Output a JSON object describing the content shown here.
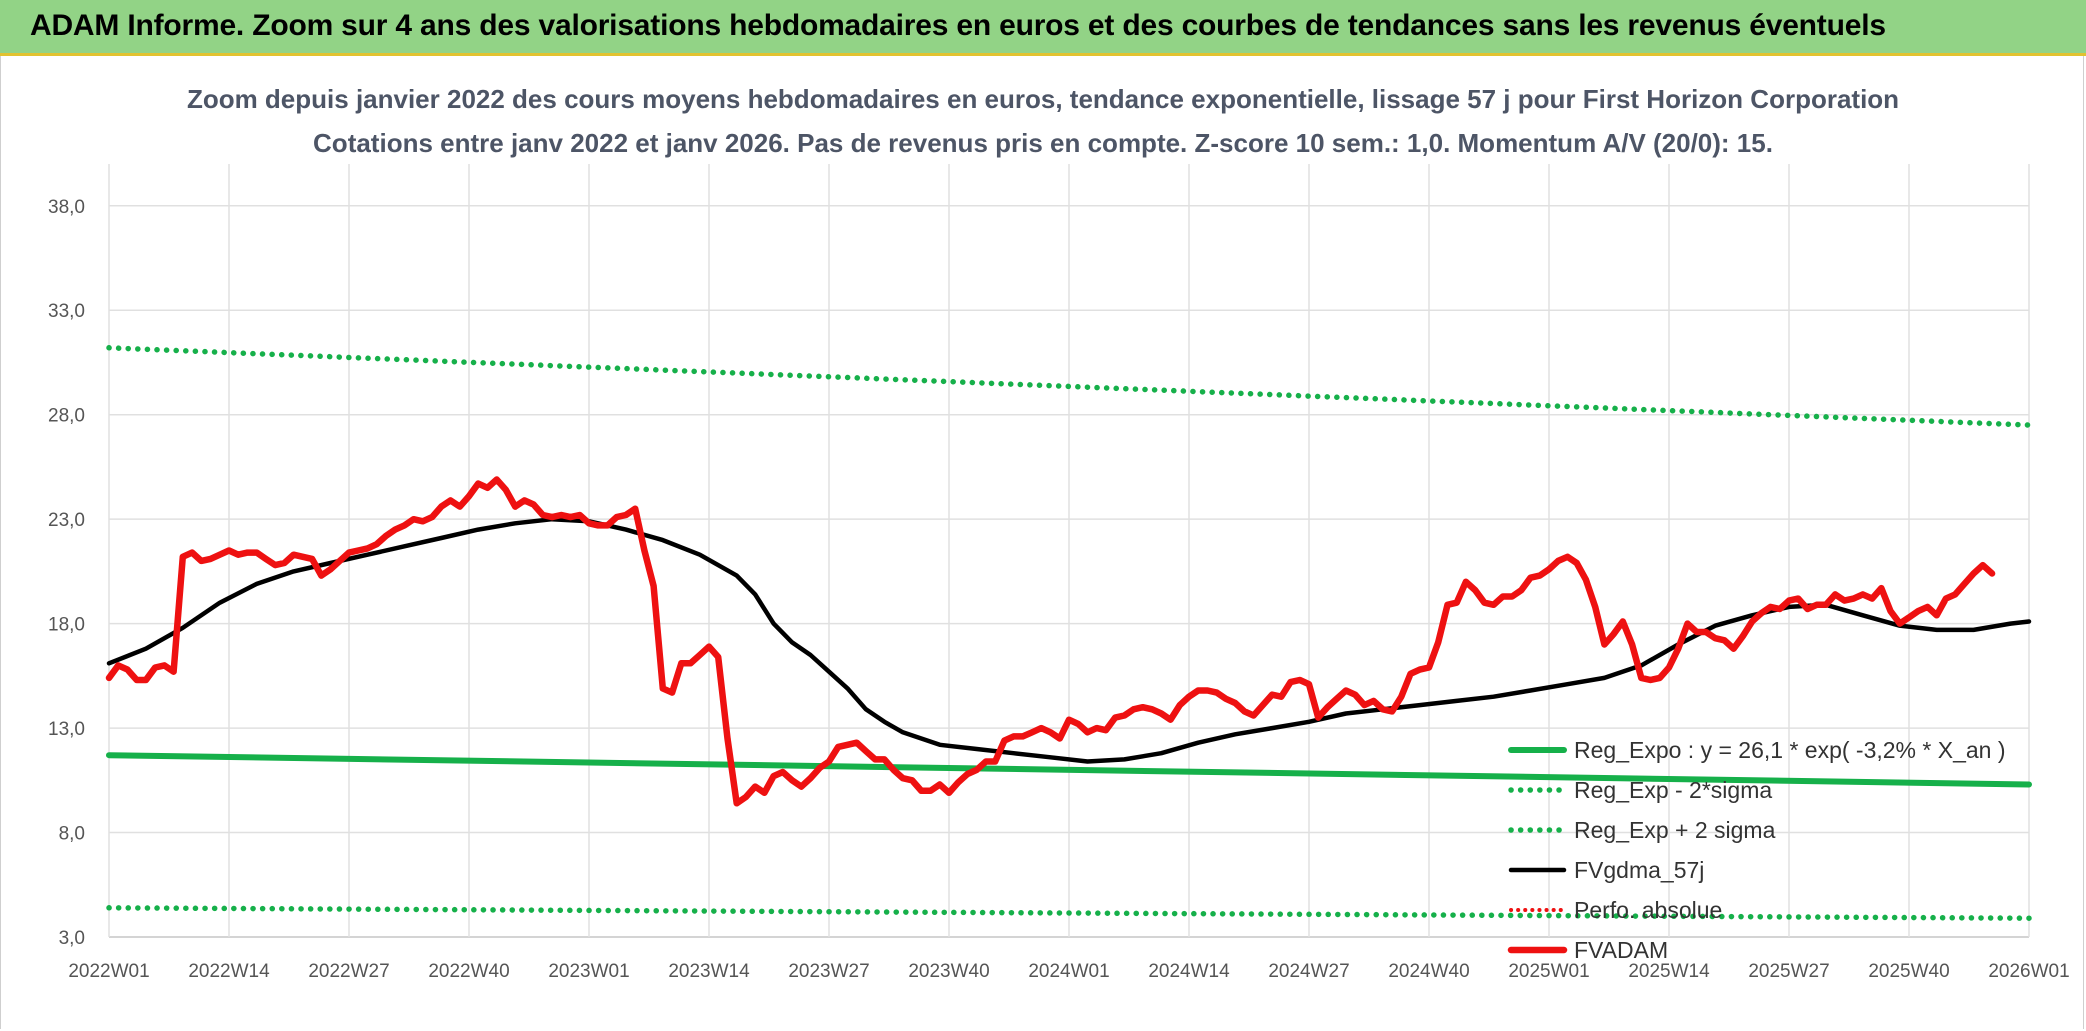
{
  "banner": {
    "text": "ADAM Informe. Zoom sur 4 ans des valorisations hebdomadaires en euros et des courbes de tendances sans les revenus éventuels"
  },
  "colors": {
    "banner_bg": "#92d386",
    "trend_green": "#16b04a",
    "black": "#000000",
    "red": "#ee1111",
    "grid": "#e0e0e0"
  },
  "chart_data": {
    "type": "line",
    "title": [
      "Zoom depuis janvier 2022 des cours moyens hebdomadaires en euros, tendance exponentielle, lissage 57 j pour First Horizon Corporation",
      "Cotations entre janv 2022 et janv 2026. Pas de revenus pris en compte. Z-score 10 sem.: 1,0. Momentum A/V (20/0): 15."
    ],
    "ylim": [
      3,
      40
    ],
    "yticks": [
      "3,0",
      "8,0",
      "13,0",
      "18,0",
      "23,0",
      "28,0",
      "33,0",
      "38,0"
    ],
    "ytick_values": [
      3,
      8,
      13,
      18,
      23,
      28,
      33,
      38
    ],
    "xticks": [
      "2022W01",
      "2022W14",
      "2022W27",
      "2022W40",
      "2023W01",
      "2023W14",
      "2023W27",
      "2023W40",
      "2024W01",
      "2024W14",
      "2024W27",
      "2024W40",
      "2025W01",
      "2025W14",
      "2025W27",
      "2025W40",
      "2026W01"
    ],
    "week_count": 209,
    "legend": [
      "Reg_Expo : y = 26,1 * exp( -3,2% *  X_an )",
      "Reg_Exp - 2*sigma",
      "Reg_Exp + 2 sigma",
      "FVgdma_57j",
      "Perfo. absolue",
      "FVADAM"
    ],
    "series": [
      {
        "name": "Reg_Expo : y = 26,1 * exp( -3,2% *  X_an )",
        "style": "solid-green",
        "points": [
          [
            0,
            11.7
          ],
          [
            208,
            10.3
          ]
        ]
      },
      {
        "name": "Reg_Exp - 2*sigma",
        "style": "dotted-green",
        "points": [
          [
            0,
            4.4
          ],
          [
            208,
            3.9
          ]
        ]
      },
      {
        "name": "Reg_Exp + 2 sigma",
        "style": "dotted-green",
        "points": [
          [
            0,
            31.2
          ],
          [
            208,
            27.5
          ]
        ]
      },
      {
        "name": "FVgdma_57j",
        "style": "solid-black",
        "points": [
          [
            0,
            16.1
          ],
          [
            4,
            16.8
          ],
          [
            8,
            17.8
          ],
          [
            12,
            19.0
          ],
          [
            16,
            19.9
          ],
          [
            20,
            20.5
          ],
          [
            24,
            20.9
          ],
          [
            28,
            21.3
          ],
          [
            32,
            21.7
          ],
          [
            36,
            22.1
          ],
          [
            40,
            22.5
          ],
          [
            44,
            22.8
          ],
          [
            48,
            23.0
          ],
          [
            52,
            22.9
          ],
          [
            56,
            22.5
          ],
          [
            60,
            22.0
          ],
          [
            64,
            21.3
          ],
          [
            68,
            20.3
          ],
          [
            70,
            19.4
          ],
          [
            72,
            18.0
          ],
          [
            74,
            17.1
          ],
          [
            76,
            16.5
          ],
          [
            78,
            15.7
          ],
          [
            80,
            14.9
          ],
          [
            82,
            13.9
          ],
          [
            84,
            13.3
          ],
          [
            86,
            12.8
          ],
          [
            88,
            12.5
          ],
          [
            90,
            12.2
          ],
          [
            94,
            12.0
          ],
          [
            98,
            11.8
          ],
          [
            102,
            11.6
          ],
          [
            106,
            11.4
          ],
          [
            110,
            11.5
          ],
          [
            114,
            11.8
          ],
          [
            118,
            12.3
          ],
          [
            122,
            12.7
          ],
          [
            126,
            13.0
          ],
          [
            130,
            13.3
          ],
          [
            134,
            13.7
          ],
          [
            138,
            13.9
          ],
          [
            142,
            14.1
          ],
          [
            146,
            14.3
          ],
          [
            150,
            14.5
          ],
          [
            154,
            14.8
          ],
          [
            158,
            15.1
          ],
          [
            162,
            15.4
          ],
          [
            166,
            16.0
          ],
          [
            170,
            17.0
          ],
          [
            174,
            17.9
          ],
          [
            178,
            18.4
          ],
          [
            182,
            18.8
          ],
          [
            186,
            18.9
          ],
          [
            190,
            18.4
          ],
          [
            194,
            17.9
          ],
          [
            198,
            17.7
          ],
          [
            202,
            17.7
          ],
          [
            206,
            18.0
          ],
          [
            208,
            18.1
          ]
        ]
      },
      {
        "name": "Perfo. absolue",
        "style": "dotted-red",
        "points": []
      },
      {
        "name": "FVADAM",
        "style": "solid-red",
        "points": [
          [
            0,
            15.4
          ],
          [
            1,
            16.0
          ],
          [
            2,
            15.8
          ],
          [
            3,
            15.3
          ],
          [
            4,
            15.3
          ],
          [
            5,
            15.9
          ],
          [
            6,
            16.0
          ],
          [
            7,
            15.7
          ],
          [
            8,
            21.2
          ],
          [
            9,
            21.4
          ],
          [
            10,
            21.0
          ],
          [
            11,
            21.1
          ],
          [
            12,
            21.3
          ],
          [
            13,
            21.5
          ],
          [
            14,
            21.3
          ],
          [
            15,
            21.4
          ],
          [
            16,
            21.4
          ],
          [
            17,
            21.1
          ],
          [
            18,
            20.8
          ],
          [
            19,
            20.9
          ],
          [
            20,
            21.3
          ],
          [
            21,
            21.2
          ],
          [
            22,
            21.1
          ],
          [
            23,
            20.3
          ],
          [
            24,
            20.6
          ],
          [
            25,
            21.0
          ],
          [
            26,
            21.4
          ],
          [
            27,
            21.5
          ],
          [
            28,
            21.6
          ],
          [
            29,
            21.8
          ],
          [
            30,
            22.2
          ],
          [
            31,
            22.5
          ],
          [
            32,
            22.7
          ],
          [
            33,
            23.0
          ],
          [
            34,
            22.9
          ],
          [
            35,
            23.1
          ],
          [
            36,
            23.6
          ],
          [
            37,
            23.9
          ],
          [
            38,
            23.6
          ],
          [
            39,
            24.1
          ],
          [
            40,
            24.7
          ],
          [
            41,
            24.5
          ],
          [
            42,
            24.9
          ],
          [
            43,
            24.4
          ],
          [
            44,
            23.6
          ],
          [
            45,
            23.9
          ],
          [
            46,
            23.7
          ],
          [
            47,
            23.2
          ],
          [
            48,
            23.1
          ],
          [
            49,
            23.2
          ],
          [
            50,
            23.1
          ],
          [
            51,
            23.2
          ],
          [
            52,
            22.8
          ],
          [
            53,
            22.7
          ],
          [
            54,
            22.7
          ],
          [
            55,
            23.1
          ],
          [
            56,
            23.2
          ],
          [
            57,
            23.5
          ],
          [
            58,
            21.5
          ],
          [
            59,
            19.8
          ],
          [
            60,
            14.9
          ],
          [
            61,
            14.7
          ],
          [
            62,
            16.1
          ],
          [
            63,
            16.1
          ],
          [
            64,
            16.5
          ],
          [
            65,
            16.9
          ],
          [
            66,
            16.4
          ],
          [
            67,
            12.5
          ],
          [
            68,
            9.4
          ],
          [
            69,
            9.7
          ],
          [
            70,
            10.2
          ],
          [
            71,
            9.9
          ],
          [
            72,
            10.7
          ],
          [
            73,
            10.9
          ],
          [
            74,
            10.5
          ],
          [
            75,
            10.2
          ],
          [
            76,
            10.6
          ],
          [
            77,
            11.1
          ],
          [
            78,
            11.4
          ],
          [
            79,
            12.1
          ],
          [
            80,
            12.2
          ],
          [
            81,
            12.3
          ],
          [
            82,
            11.9
          ],
          [
            83,
            11.5
          ],
          [
            84,
            11.5
          ],
          [
            85,
            11.0
          ],
          [
            86,
            10.6
          ],
          [
            87,
            10.5
          ],
          [
            88,
            10.0
          ],
          [
            89,
            10.0
          ],
          [
            90,
            10.3
          ],
          [
            91,
            9.9
          ],
          [
            92,
            10.4
          ],
          [
            93,
            10.8
          ],
          [
            94,
            11.0
          ],
          [
            95,
            11.4
          ],
          [
            96,
            11.4
          ],
          [
            97,
            12.4
          ],
          [
            98,
            12.6
          ],
          [
            99,
            12.6
          ],
          [
            100,
            12.8
          ],
          [
            101,
            13.0
          ],
          [
            102,
            12.8
          ],
          [
            103,
            12.5
          ],
          [
            104,
            13.4
          ],
          [
            105,
            13.2
          ],
          [
            106,
            12.8
          ],
          [
            107,
            13.0
          ],
          [
            108,
            12.9
          ],
          [
            109,
            13.5
          ],
          [
            110,
            13.6
          ],
          [
            111,
            13.9
          ],
          [
            112,
            14.0
          ],
          [
            113,
            13.9
          ],
          [
            114,
            13.7
          ],
          [
            115,
            13.4
          ],
          [
            116,
            14.1
          ],
          [
            117,
            14.5
          ],
          [
            118,
            14.8
          ],
          [
            119,
            14.8
          ],
          [
            120,
            14.7
          ],
          [
            121,
            14.4
          ],
          [
            122,
            14.2
          ],
          [
            123,
            13.8
          ],
          [
            124,
            13.6
          ],
          [
            125,
            14.1
          ],
          [
            126,
            14.6
          ],
          [
            127,
            14.5
          ],
          [
            128,
            15.2
          ],
          [
            129,
            15.3
          ],
          [
            130,
            15.1
          ],
          [
            131,
            13.5
          ],
          [
            132,
            14.0
          ],
          [
            133,
            14.4
          ],
          [
            134,
            14.8
          ],
          [
            135,
            14.6
          ],
          [
            136,
            14.1
          ],
          [
            137,
            14.3
          ],
          [
            138,
            13.9
          ],
          [
            139,
            13.8
          ],
          [
            140,
            14.5
          ],
          [
            141,
            15.6
          ],
          [
            142,
            15.8
          ],
          [
            143,
            15.9
          ],
          [
            144,
            17.1
          ],
          [
            145,
            18.9
          ],
          [
            146,
            19.0
          ],
          [
            147,
            20.0
          ],
          [
            148,
            19.6
          ],
          [
            149,
            19.0
          ],
          [
            150,
            18.9
          ],
          [
            151,
            19.3
          ],
          [
            152,
            19.3
          ],
          [
            153,
            19.6
          ],
          [
            154,
            20.2
          ],
          [
            155,
            20.3
          ],
          [
            156,
            20.6
          ],
          [
            157,
            21.0
          ],
          [
            158,
            21.2
          ],
          [
            159,
            20.9
          ],
          [
            160,
            20.1
          ],
          [
            161,
            18.8
          ],
          [
            162,
            17.0
          ],
          [
            163,
            17.5
          ],
          [
            164,
            18.1
          ],
          [
            165,
            17.0
          ],
          [
            166,
            15.4
          ],
          [
            167,
            15.3
          ],
          [
            168,
            15.4
          ],
          [
            169,
            15.9
          ],
          [
            170,
            16.8
          ],
          [
            171,
            18.0
          ],
          [
            172,
            17.6
          ],
          [
            173,
            17.6
          ],
          [
            174,
            17.3
          ],
          [
            175,
            17.2
          ],
          [
            176,
            16.8
          ],
          [
            177,
            17.4
          ],
          [
            178,
            18.1
          ],
          [
            179,
            18.5
          ],
          [
            180,
            18.8
          ],
          [
            181,
            18.7
          ],
          [
            182,
            19.1
          ],
          [
            183,
            19.2
          ],
          [
            184,
            18.7
          ],
          [
            185,
            18.9
          ],
          [
            186,
            18.9
          ],
          [
            187,
            19.4
          ],
          [
            188,
            19.1
          ],
          [
            189,
            19.2
          ],
          [
            190,
            19.4
          ],
          [
            191,
            19.2
          ],
          [
            192,
            19.7
          ],
          [
            193,
            18.6
          ],
          [
            194,
            18.0
          ],
          [
            195,
            18.3
          ],
          [
            196,
            18.6
          ],
          [
            197,
            18.8
          ],
          [
            198,
            18.4
          ],
          [
            199,
            19.2
          ],
          [
            200,
            19.4
          ],
          [
            201,
            19.9
          ],
          [
            202,
            20.4
          ],
          [
            203,
            20.8
          ],
          [
            204,
            20.4
          ]
        ]
      }
    ]
  }
}
